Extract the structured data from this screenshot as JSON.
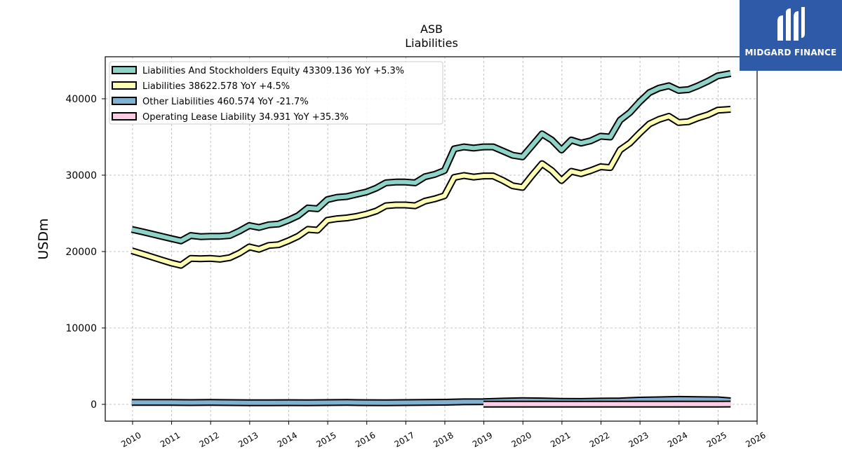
{
  "chart_data": {
    "type": "line",
    "title": "ASB",
    "subtitle": "Liabilities",
    "ylabel": "USDm",
    "xlabel": "",
    "xlim": [
      2009.3,
      2026.0
    ],
    "ylim": [
      -2200,
      45500
    ],
    "yticks": [
      0,
      10000,
      20000,
      30000,
      40000
    ],
    "xticks": [
      "2010",
      "2011",
      "2012",
      "2013",
      "2014",
      "2015",
      "2016",
      "2017",
      "2018",
      "2019",
      "2020",
      "2021",
      "2022",
      "2023",
      "2024",
      "2025",
      "2026"
    ],
    "grid": true,
    "legend_position": "top-left",
    "series": [
      {
        "name": "Liabilities And Stockholders Equity",
        "legend": "Liabilities And Stockholders Equity  43309.136 YoY +5.3%",
        "color": "#8dd3c7",
        "x": [
          2009.98,
          2010.24,
          2010.49,
          2010.74,
          2010.99,
          2011.24,
          2011.49,
          2011.74,
          2011.99,
          2012.24,
          2012.49,
          2012.74,
          2012.99,
          2013.24,
          2013.49,
          2013.74,
          2013.99,
          2014.24,
          2014.49,
          2014.74,
          2014.99,
          2015.24,
          2015.49,
          2015.74,
          2015.99,
          2016.24,
          2016.49,
          2016.74,
          2016.99,
          2017.24,
          2017.49,
          2017.74,
          2017.99,
          2018.24,
          2018.49,
          2018.74,
          2018.99,
          2019.24,
          2019.49,
          2019.74,
          2019.99,
          2020.24,
          2020.49,
          2020.74,
          2020.99,
          2021.24,
          2021.49,
          2021.74,
          2021.99,
          2022.24,
          2022.49,
          2022.74,
          2022.99,
          2023.24,
          2023.49,
          2023.74,
          2023.99,
          2024.24,
          2024.49,
          2024.74,
          2024.99,
          2025.32
        ],
        "values": [
          22900,
          22600,
          22300,
          22000,
          21700,
          21400,
          22100,
          21950,
          22000,
          22000,
          22100,
          22700,
          23400,
          23150,
          23500,
          23600,
          24100,
          24700,
          25700,
          25600,
          26800,
          27100,
          27200,
          27500,
          27800,
          28300,
          29000,
          29100,
          29100,
          29000,
          29800,
          30100,
          30600,
          33450,
          33700,
          33550,
          33700,
          33700,
          33150,
          32600,
          32400,
          33900,
          35400,
          34600,
          33300,
          34600,
          34200,
          34500,
          35100,
          35000,
          37200,
          38200,
          39600,
          40800,
          41400,
          41700,
          41100,
          41200,
          41700,
          42300,
          43000,
          43309
        ]
      },
      {
        "name": "Liabilities",
        "legend": "Liabilities  38622.578 YoY +4.5%",
        "color": "#ffffb3",
        "x": [
          2009.98,
          2010.24,
          2010.49,
          2010.74,
          2010.99,
          2011.24,
          2011.49,
          2011.74,
          2011.99,
          2012.24,
          2012.49,
          2012.74,
          2012.99,
          2013.24,
          2013.49,
          2013.74,
          2013.99,
          2014.24,
          2014.49,
          2014.74,
          2014.99,
          2015.24,
          2015.49,
          2015.74,
          2015.99,
          2016.24,
          2016.49,
          2016.74,
          2016.99,
          2017.24,
          2017.49,
          2017.74,
          2017.99,
          2018.24,
          2018.49,
          2018.74,
          2018.99,
          2019.24,
          2019.49,
          2019.74,
          2019.99,
          2020.24,
          2020.49,
          2020.74,
          2020.99,
          2021.24,
          2021.49,
          2021.74,
          2021.99,
          2022.24,
          2022.49,
          2022.74,
          2022.99,
          2023.24,
          2023.49,
          2023.74,
          2023.99,
          2024.24,
          2024.49,
          2024.74,
          2024.99,
          2025.32
        ],
        "values": [
          20100,
          19700,
          19300,
          18900,
          18500,
          18200,
          19100,
          19050,
          19100,
          19000,
          19200,
          19800,
          20600,
          20300,
          20800,
          20900,
          21400,
          22000,
          22900,
          22800,
          24100,
          24300,
          24400,
          24600,
          24900,
          25300,
          26000,
          26100,
          26100,
          26000,
          26600,
          26900,
          27300,
          29700,
          29950,
          29750,
          29900,
          29900,
          29300,
          28600,
          28400,
          30000,
          31500,
          30600,
          29300,
          30500,
          30200,
          30600,
          31100,
          31000,
          33300,
          34200,
          35500,
          36700,
          37300,
          37700,
          36900,
          37000,
          37500,
          37900,
          38500,
          38623
        ]
      },
      {
        "name": "Other Liabilities",
        "legend": "Other Liabilities  460.574 YoY -21.7%",
        "color": "#80b1d3",
        "x": [
          2009.98,
          2010.49,
          2010.99,
          2011.49,
          2011.99,
          2012.49,
          2012.99,
          2013.49,
          2013.99,
          2014.49,
          2014.99,
          2015.49,
          2015.99,
          2016.49,
          2016.99,
          2017.49,
          2017.99,
          2018.49,
          2018.99,
          2019.49,
          2019.99,
          2020.49,
          2020.99,
          2021.49,
          2021.99,
          2022.49,
          2022.99,
          2023.49,
          2023.99,
          2024.49,
          2024.99,
          2025.32
        ],
        "values": [
          250,
          250,
          250,
          230,
          260,
          230,
          210,
          200,
          220,
          200,
          230,
          250,
          220,
          200,
          230,
          250,
          280,
          330,
          340,
          420,
          480,
          450,
          400,
          380,
          420,
          450,
          550,
          600,
          650,
          620,
          600,
          460
        ]
      },
      {
        "name": "Operating Lease Liability",
        "legend": "Operating Lease Liability  34.931 YoY +35.3%",
        "color": "#fccde5",
        "x": [
          2018.99,
          2019.49,
          2019.99,
          2020.49,
          2020.99,
          2021.49,
          2021.99,
          2022.49,
          2022.99,
          2023.49,
          2023.99,
          2024.49,
          2024.99,
          2025.32
        ],
        "values": [
          30,
          30,
          30,
          30,
          30,
          30,
          30,
          30,
          30,
          30,
          30,
          30,
          30,
          35
        ]
      }
    ]
  },
  "logo": {
    "text": "MIDGARD FINANCE",
    "background": "#2e5aa8"
  }
}
